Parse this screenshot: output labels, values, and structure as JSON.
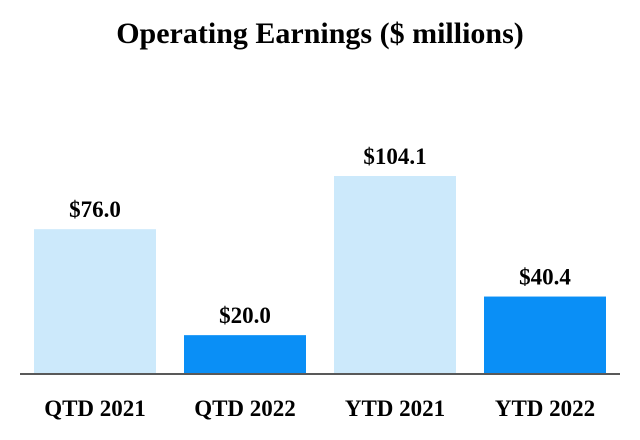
{
  "chart_data": {
    "type": "bar",
    "title": "Operating Earnings ($ millions)",
    "xlabel": "",
    "ylabel": "",
    "categories": [
      "QTD 2021",
      "QTD 2022",
      "YTD 2021",
      "YTD 2022"
    ],
    "values": [
      76.0,
      20.0,
      104.1,
      40.4
    ],
    "data_labels": [
      "$76.0",
      "$20.0",
      "$104.1",
      "$40.4"
    ],
    "bar_colors": [
      "#cce9fb",
      "#0a8ff6",
      "#cce9fb",
      "#0a8ff6"
    ],
    "axis_color": "#595959",
    "ylim": [
      0,
      104.1
    ],
    "grid": false,
    "legend": "none"
  }
}
